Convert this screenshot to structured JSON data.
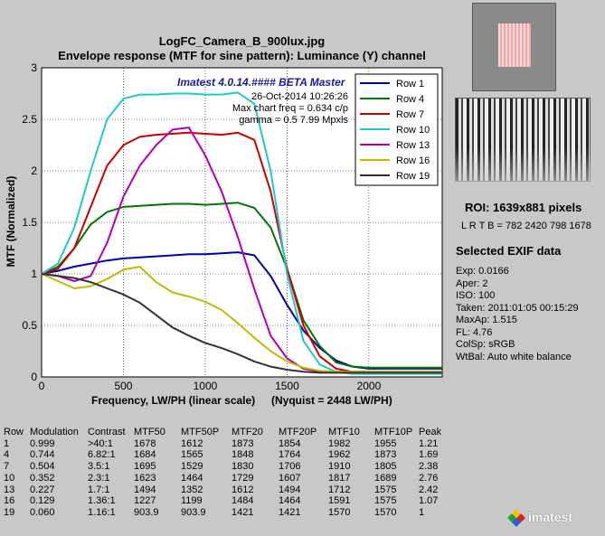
{
  "header": {
    "filename": "LogFC_Camera_B_900lux.jpg",
    "subtitle": "Envelope response (MTF for sine pattern):  Luminance (Y) channel"
  },
  "annotations": {
    "version": "Imatest 4.0.14.#### BETA Master",
    "date": "26-Oct-2014 10:26:26",
    "max_freq": "Max chart freq = 0.634 c/p",
    "gamma": "gamma = 0.5   7.99 Mpxls"
  },
  "colors": {
    "Row 1": "#0000aa",
    "Row 4": "#007700",
    "Row 7": "#cc0000",
    "Row 10": "#22c8c8",
    "Row 13": "#b400b4",
    "Row 16": "#bcbc00",
    "Row 19": "#333333"
  },
  "chart_data": {
    "type": "line",
    "title": "Envelope response (MTF for sine pattern):  Luminance (Y) channel",
    "xlabel": "Frequency, LW/PH (linear scale)",
    "xlabel_note": "(Nyquist = 2448 LW/PH)",
    "ylabel": "MTF (Normalized)",
    "xlim": [
      0,
      2448
    ],
    "ylim": [
      0,
      3
    ],
    "xticks": [
      "0",
      "500",
      "1000",
      "1500",
      "2000"
    ],
    "yticks": [
      "0",
      "0.5",
      "1",
      "1.5",
      "2",
      "2.5",
      "3"
    ],
    "grid": true,
    "legend_position": "top-right",
    "x": [
      0,
      100,
      200,
      300,
      400,
      500,
      600,
      700,
      800,
      900,
      1000,
      1100,
      1200,
      1300,
      1400,
      1500,
      1600,
      1700,
      1800,
      1900,
      2000,
      2100,
      2200,
      2300,
      2448
    ],
    "series": [
      {
        "name": "Row 1",
        "values": [
          1.0,
          1.03,
          1.07,
          1.1,
          1.13,
          1.15,
          1.16,
          1.17,
          1.18,
          1.19,
          1.19,
          1.2,
          1.21,
          1.18,
          0.98,
          0.7,
          0.45,
          0.28,
          0.16,
          0.1,
          0.08,
          0.08,
          0.08,
          0.08,
          0.08
        ]
      },
      {
        "name": "Row 4",
        "values": [
          1.0,
          1.07,
          1.25,
          1.48,
          1.6,
          1.65,
          1.66,
          1.67,
          1.68,
          1.68,
          1.67,
          1.68,
          1.69,
          1.64,
          1.45,
          1.05,
          0.55,
          0.3,
          0.14,
          0.1,
          0.09,
          0.09,
          0.09,
          0.09,
          0.09
        ]
      },
      {
        "name": "Row 7",
        "values": [
          1.0,
          1.05,
          1.25,
          1.65,
          2.05,
          2.25,
          2.33,
          2.35,
          2.36,
          2.37,
          2.36,
          2.35,
          2.37,
          2.3,
          1.8,
          1.05,
          0.5,
          0.2,
          0.08,
          0.05,
          0.05,
          0.05,
          0.05,
          0.05,
          0.05
        ]
      },
      {
        "name": "Row 10",
        "values": [
          1.0,
          1.1,
          1.45,
          2.0,
          2.5,
          2.7,
          2.74,
          2.74,
          2.75,
          2.75,
          2.74,
          2.74,
          2.76,
          2.65,
          2.0,
          1.0,
          0.35,
          0.12,
          0.05,
          0.03,
          0.03,
          0.03,
          0.03,
          0.03,
          0.03
        ]
      },
      {
        "name": "Row 13",
        "values": [
          1.0,
          0.98,
          0.93,
          0.98,
          1.3,
          1.75,
          2.05,
          2.25,
          2.4,
          2.42,
          2.15,
          1.8,
          1.35,
          0.85,
          0.4,
          0.18,
          0.08,
          0.05,
          0.05,
          0.05,
          0.05,
          0.05,
          0.05,
          0.05,
          0.05
        ]
      },
      {
        "name": "Row 16",
        "values": [
          1.0,
          0.93,
          0.86,
          0.88,
          0.95,
          1.04,
          1.07,
          0.92,
          0.82,
          0.78,
          0.73,
          0.65,
          0.52,
          0.38,
          0.25,
          0.15,
          0.09,
          0.06,
          0.05,
          0.05,
          0.05,
          0.05,
          0.05,
          0.05,
          0.05
        ]
      },
      {
        "name": "Row 19",
        "values": [
          1.0,
          0.98,
          0.96,
          0.92,
          0.86,
          0.8,
          0.72,
          0.6,
          0.48,
          0.4,
          0.33,
          0.28,
          0.22,
          0.15,
          0.1,
          0.07,
          0.05,
          0.04,
          0.04,
          0.04,
          0.04,
          0.04,
          0.04,
          0.04,
          0.04
        ]
      }
    ]
  },
  "side_panel": {
    "roi": "ROI:  1639x881 pixels",
    "lrtb": "L R  T B = 782 2420  798 1678",
    "exif_title": "Selected EXIF data",
    "exif": [
      "Exp:  0.0166",
      "Aper:  2",
      "ISO:  100",
      "Taken: 2011:01:05 00:15:29",
      "MaxAp: 1.515",
      "FL:  4.76",
      "ColSp: sRGB",
      "WtBal: Auto white balance"
    ]
  },
  "table": {
    "headers": [
      "Row",
      "Modulation",
      "Contrast",
      "MTF50",
      "MTF50P",
      "MTF20",
      "MTF20P",
      "MTF10",
      "MTF10P",
      "Peak"
    ],
    "rows": [
      [
        "1",
        "0.999",
        ">40:1",
        "1678",
        "1612",
        "1873",
        "1854",
        "1982",
        "1955",
        "1.21"
      ],
      [
        "4",
        "0.744",
        "6.82:1",
        "1684",
        "1565",
        "1848",
        "1764",
        "1962",
        "1873",
        "1.69"
      ],
      [
        "7",
        "0.504",
        "3.5:1",
        "1695",
        "1529",
        "1830",
        "1706",
        "1910",
        "1805",
        "2.38"
      ],
      [
        "10",
        "0.352",
        "2.3:1",
        "1623",
        "1464",
        "1729",
        "1607",
        "1817",
        "1689",
        "2.76"
      ],
      [
        "13",
        "0.227",
        "1.7:1",
        "1494",
        "1352",
        "1612",
        "1494",
        "1712",
        "1575",
        "2.42"
      ],
      [
        "16",
        "0.129",
        "1.36:1",
        "1227",
        "1199",
        "1484",
        "1464",
        "1591",
        "1575",
        "1.07"
      ],
      [
        "19",
        "0.060",
        "1.16:1",
        "903.9",
        "903.9",
        "1421",
        "1421",
        "1570",
        "1570",
        "1"
      ]
    ]
  },
  "logo": {
    "text": "imatest"
  }
}
